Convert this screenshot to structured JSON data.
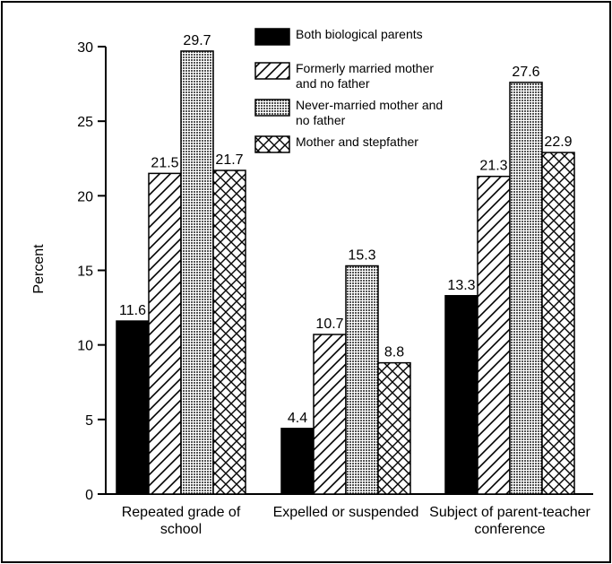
{
  "chart_data": {
    "type": "bar",
    "categories": [
      "Repeated grade of school",
      "Expelled or suspended",
      "Subject of parent-teacher conference"
    ],
    "series": [
      {
        "name": "Both biological parents",
        "color": "#000000",
        "values": [
          11.6,
          4.4,
          13.3
        ]
      },
      {
        "name": "Formerly married mother and no father",
        "color": "#ffffff",
        "values": [
          21.5,
          10.7,
          21.3
        ]
      },
      {
        "name": "Never-married mother and no father",
        "color": "#999999",
        "values": [
          29.7,
          15.3,
          27.6
        ]
      },
      {
        "name": "Mother and stepfather",
        "color": "#ffffff",
        "values": [
          21.7,
          8.8,
          22.9
        ]
      }
    ],
    "ylabel": "Percent",
    "ylim": [
      0,
      30
    ],
    "yticks": [
      0,
      5,
      10,
      15,
      20,
      25,
      30
    ]
  }
}
